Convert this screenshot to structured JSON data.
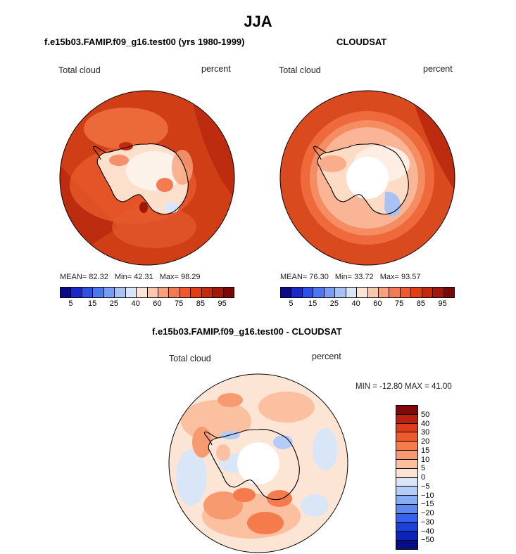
{
  "main_title": "JJA",
  "panels": [
    {
      "title": "f.e15b03.FAMIP.f09_g16.test00 (yrs 1980-1999)",
      "field_label": "Total cloud",
      "units_label": "percent",
      "stats": {
        "mean_label": "MEAN=",
        "mean": "82.32",
        "min_label": "Min=",
        "min": "42.31",
        "max_label": "Max=",
        "max": "98.29"
      }
    },
    {
      "title": "CLOUDSAT",
      "field_label": "Total cloud",
      "units_label": "percent",
      "stats": {
        "mean_label": "MEAN=",
        "mean": "76.30",
        "min_label": "Min=",
        "min": "33.72",
        "max_label": "Max=",
        "max": "93.57"
      }
    },
    {
      "title": "f.e15b03.FAMIP.f09_g16.test00 - CLOUDSAT",
      "field_label": "Total cloud",
      "units_label": "percent",
      "minmax_text": "MIN = -12.80 MAX =  41.00"
    }
  ],
  "colorbar_abs": {
    "colors": [
      "#0a0a8a",
      "#1a28c8",
      "#2e50e6",
      "#4a78f0",
      "#7a9cf2",
      "#a8c2f4",
      "#d8e6f8",
      "#fde5d6",
      "#fbc8ad",
      "#f8a17c",
      "#f47a52",
      "#ee5a2e",
      "#e03c15",
      "#c22a0c",
      "#a01808",
      "#7a0806"
    ],
    "tick_labels": [
      "5",
      "15",
      "25",
      "40",
      "60",
      "75",
      "85",
      "95"
    ]
  },
  "colorbar_diff": {
    "colors": [
      "#800808",
      "#b82010",
      "#dd3d1a",
      "#ef5a2c",
      "#f57a4c",
      "#f89a70",
      "#fbc0a0",
      "#fde5d6",
      "#d8e6f8",
      "#b4cdf8",
      "#88acf4",
      "#5c88f0",
      "#3462ea",
      "#1c40d8",
      "#0c24b8",
      "#060e86"
    ],
    "tick_labels": [
      "50",
      "40",
      "30",
      "20",
      "15",
      "10",
      "5",
      "0",
      "−5",
      "−10",
      "−15",
      "−20",
      "−30",
      "−40",
      "−50"
    ]
  },
  "chart_data": [
    {
      "type": "heatmap",
      "title": "f.e15b03.FAMIP.f09_g16.test00 (yrs 1980-1999)",
      "variable": "Total cloud",
      "units": "percent",
      "season": "JJA",
      "projection": "south polar stereographic",
      "mean": 82.32,
      "min": 42.31,
      "max": 98.29,
      "contour_levels": [
        5,
        10,
        15,
        20,
        25,
        30,
        40,
        50,
        60,
        70,
        75,
        80,
        85,
        90,
        95
      ]
    },
    {
      "type": "heatmap",
      "title": "CLOUDSAT",
      "variable": "Total cloud",
      "units": "percent",
      "season": "JJA",
      "projection": "south polar stereographic",
      "mean": 76.3,
      "min": 33.72,
      "max": 93.57,
      "contour_levels": [
        5,
        10,
        15,
        20,
        25,
        30,
        40,
        50,
        60,
        70,
        75,
        80,
        85,
        90,
        95
      ]
    },
    {
      "type": "heatmap",
      "title": "f.e15b03.FAMIP.f09_g16.test00 - CLOUDSAT",
      "variable": "Total cloud",
      "units": "percent",
      "season": "JJA",
      "projection": "south polar stereographic",
      "min": -12.8,
      "max": 41.0,
      "contour_levels": [
        -50,
        -40,
        -30,
        -20,
        -15,
        -10,
        -5,
        0,
        5,
        10,
        15,
        20,
        30,
        40,
        50
      ]
    }
  ]
}
